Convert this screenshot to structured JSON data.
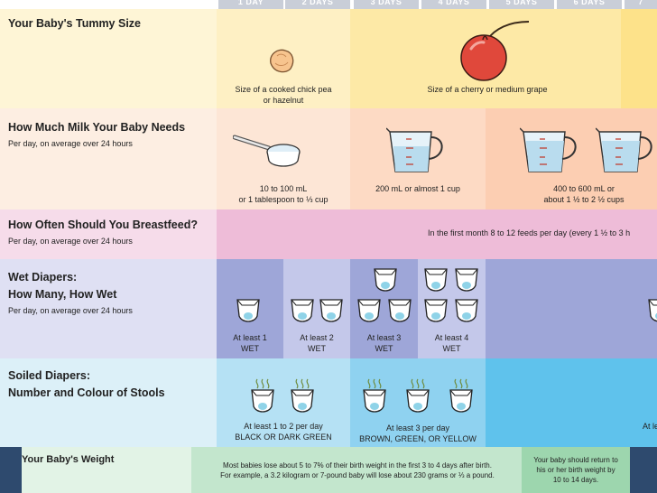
{
  "days": [
    "1 DAY",
    "2 DAYS",
    "3 DAYS",
    "4 DAYS",
    "5 DAYS",
    "6 DAYS",
    "7"
  ],
  "tummy": {
    "title": "Your Baby's Tummy Size",
    "day1_caption_line1": "Size of a cooked chick pea",
    "day1_caption_line2": "or hazelnut",
    "day3_caption": "Size of a cherry or medium grape"
  },
  "milk": {
    "title": "How Much Milk Your Baby Needs",
    "subtitle": "Per day, on average over 24 hours",
    "day1_line1": "10 to 100 mL",
    "day1_line2": "or 1 tablespoon to ⅓ cup",
    "day3": "200 mL or almost 1 cup",
    "day5_line1": "400 to 600 mL or",
    "day5_line2": "about 1 ½ to 2 ½  cups"
  },
  "feed": {
    "title": "How Often Should You Breastfeed?",
    "subtitle": "Per day, on average over 24 hours",
    "text": "In the first month 8 to 12 feeds per day (every 1 ½ to 3 h"
  },
  "wet": {
    "title_line1": "Wet Diapers:",
    "title_line2": "How Many, How Wet",
    "subtitle": "Per day, on average over 24 hours",
    "d1_line1": "At least 1",
    "d1_line2": "WET",
    "d2_line1": "At least 2",
    "d2_line2": "WET",
    "d3_line1": "At least 3",
    "d3_line2": "WET",
    "d4_line1": "At least 4",
    "d4_line2": "WET"
  },
  "soiled": {
    "title_line1": "Soiled Diapers:",
    "title_line2": "Number and Colour of Stools",
    "d1_line1": "At least 1 to 2 per day",
    "d1_line2": "BLACK OR DARK GREEN",
    "d3_line1": "At least 3 per day",
    "d3_line2": "BROWN, GREEN, OR YELLOW",
    "edge_label": "At le"
  },
  "weight": {
    "title": "Your Baby's Weight",
    "text_line1": "Most babies lose about 5 to 7% of their birth weight in the first 3 to 4 days after birth.",
    "text_line2": "For example, a 3.2 kilogram or 7-pound baby will lose about 230 grams or ⅓ a pound.",
    "return_line1": "Your baby should return to",
    "return_line2": "his or her birth weight by",
    "return_line3": "10 to 14 days."
  },
  "colors": {
    "tummy_row": "#fef5d6",
    "milk_row": "#fde6d6",
    "feed_row": "#f5d3e4",
    "wet_row": "#d9dbf0",
    "soiled_row": "#d8eef6",
    "weight_row": "#d6ecd9"
  }
}
